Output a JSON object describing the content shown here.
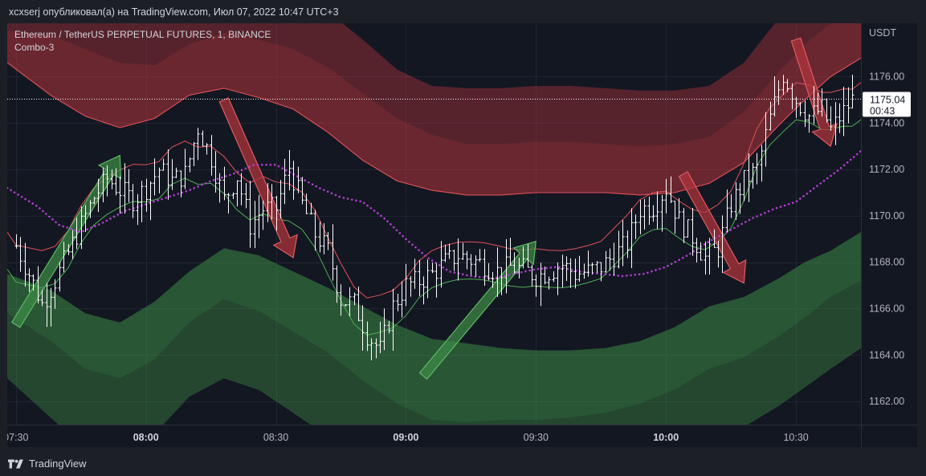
{
  "header": {
    "publish_line": "xcxserj опубликовал(а) на TradingView.com, Июл 07, 2022 10:47 UTC+3"
  },
  "legend": {
    "symbol_line": "Ethereum / TetherUS PERPETUAL FUTURES, 1, BINANCE",
    "indicator_name": "Combo-3"
  },
  "footer": {
    "brand": "TradingView"
  },
  "colors": {
    "background": "#131722",
    "upper_band": "#b2353c",
    "lower_band": "#3d8a45",
    "candle": "#ffffff",
    "dotted_ma": "#b13fd0",
    "current_price_box": "#ffffff"
  },
  "chart_data": {
    "type": "line",
    "title": "Ethereum / TetherUS PERPETUAL FUTURES, 1, BINANCE",
    "y_axis_label": "USDT",
    "ylim": [
      1161.0,
      1178.3
    ],
    "y_ticks": [
      "1162.00",
      "1164.00",
      "1166.00",
      "1168.00",
      "1170.00",
      "1172.00",
      "1174.00",
      "1176.00"
    ],
    "x_ticks": [
      {
        "label": "07:30",
        "bold": false
      },
      {
        "label": "08:00",
        "bold": true
      },
      {
        "label": "08:30",
        "bold": false
      },
      {
        "label": "09:00",
        "bold": true
      },
      {
        "label": "09:30",
        "bold": false
      },
      {
        "label": "10:00",
        "bold": true
      },
      {
        "label": "10:30",
        "bold": false
      }
    ],
    "x_tick_minutes": [
      0,
      30,
      60,
      90,
      120,
      150,
      180
    ],
    "x_range_minutes": [
      -2,
      195
    ],
    "current_price": {
      "value": "1175.04",
      "countdown": "00:43"
    },
    "close_series": {
      "x": [
        -2,
        0,
        3,
        6,
        9,
        12,
        15,
        18,
        21,
        24,
        27,
        30,
        33,
        36,
        39,
        42,
        45,
        48,
        51,
        54,
        57,
        60,
        63,
        66,
        69,
        72,
        75,
        78,
        81,
        84,
        87,
        90,
        93,
        96,
        99,
        102,
        105,
        108,
        111,
        114,
        117,
        120,
        123,
        126,
        129,
        132,
        135,
        138,
        141,
        144,
        147,
        150,
        153,
        156,
        159,
        162,
        165,
        168,
        171,
        174,
        177,
        180,
        183,
        186,
        188,
        191,
        193,
        195
      ],
      "y": [
        1169.0,
        1168.7,
        1167.5,
        1166.2,
        1167.2,
        1168.4,
        1169.6,
        1170.8,
        1171.6,
        1171.1,
        1170.7,
        1171.2,
        1172.0,
        1171.5,
        1171.8,
        1173.8,
        1172.5,
        1170.7,
        1171.7,
        1169.6,
        1170.3,
        1170.3,
        1172.1,
        1170.5,
        1169.2,
        1168.5,
        1166.4,
        1166.2,
        1164.9,
        1164.2,
        1166.1,
        1167.0,
        1167.2,
        1167.5,
        1168.0,
        1168.3,
        1168.1,
        1167.9,
        1167.6,
        1167.8,
        1167.7,
        1167.4,
        1167.6,
        1167.9,
        1167.5,
        1167.6,
        1167.8,
        1168.3,
        1168.8,
        1170.3,
        1170.4,
        1171.2,
        1169.8,
        1169.1,
        1168.2,
        1168.6,
        1170.5,
        1171.5,
        1172.0,
        1174.2,
        1176.1,
        1175.0,
        1174.3,
        1174.6,
        1173.7,
        1174.5,
        1175.0,
        1175.04
      ]
    },
    "dotted_ma": {
      "x": [
        -2,
        5,
        10,
        15,
        20,
        25,
        30,
        35,
        40,
        45,
        50,
        55,
        60,
        65,
        70,
        75,
        80,
        85,
        90,
        95,
        100,
        105,
        110,
        115,
        120,
        125,
        130,
        135,
        140,
        145,
        150,
        155,
        160,
        165,
        170,
        175,
        180,
        185,
        190,
        195
      ],
      "y": [
        1171.2,
        1170.4,
        1169.6,
        1169.3,
        1169.7,
        1170.2,
        1170.5,
        1170.8,
        1171.1,
        1171.5,
        1171.8,
        1172.2,
        1172.2,
        1171.7,
        1171.2,
        1170.8,
        1170.6,
        1169.9,
        1169.0,
        1168.2,
        1167.6,
        1167.4,
        1167.3,
        1167.5,
        1167.7,
        1167.8,
        1167.6,
        1167.5,
        1167.4,
        1167.5,
        1167.8,
        1168.3,
        1168.9,
        1169.4,
        1169.9,
        1170.3,
        1170.6,
        1171.3,
        1172.0,
        1172.8
      ]
    },
    "upper_band": {
      "x": [
        -2,
        8,
        16,
        24,
        32,
        40,
        48,
        56,
        64,
        72,
        80,
        88,
        96,
        104,
        112,
        120,
        128,
        136,
        144,
        152,
        160,
        168,
        176,
        182,
        188,
        195
      ],
      "outer": [
        1179.8,
        1180.2,
        1179.6,
        1178.6,
        1178.8,
        1179.5,
        1179.8,
        1179.6,
        1179.4,
        1178.8,
        1177.6,
        1176.3,
        1175.6,
        1175.5,
        1175.5,
        1175.6,
        1175.6,
        1175.5,
        1175.4,
        1175.4,
        1175.6,
        1176.6,
        1178.5,
        1180.3,
        1181.0,
        1181.2
      ],
      "mid": [
        1178.0,
        1177.8,
        1177.2,
        1176.6,
        1176.5,
        1177.4,
        1177.9,
        1177.6,
        1177.2,
        1176.4,
        1175.3,
        1174.2,
        1173.5,
        1173.1,
        1173.1,
        1173.2,
        1173.2,
        1173.1,
        1173.0,
        1173.1,
        1173.4,
        1174.5,
        1176.2,
        1177.4,
        1178.3,
        1178.8
      ],
      "inner": [
        1176.6,
        1175.2,
        1174.3,
        1173.8,
        1174.2,
        1175.2,
        1175.5,
        1175.1,
        1174.6,
        1173.6,
        1172.4,
        1171.5,
        1171.1,
        1170.9,
        1170.9,
        1171.0,
        1171.0,
        1171.0,
        1170.9,
        1171.0,
        1171.4,
        1172.3,
        1173.9,
        1175.0,
        1176.0,
        1176.8
      ]
    },
    "lower_band": {
      "x": [
        -2,
        8,
        16,
        24,
        32,
        40,
        48,
        56,
        64,
        72,
        80,
        88,
        96,
        104,
        112,
        120,
        128,
        136,
        144,
        152,
        160,
        168,
        176,
        182,
        188,
        195
      ],
      "inner": [
        1167.5,
        1166.8,
        1165.8,
        1165.4,
        1166.3,
        1167.6,
        1168.6,
        1168.3,
        1167.6,
        1166.9,
        1166.1,
        1165.3,
        1164.7,
        1164.5,
        1164.3,
        1164.2,
        1164.2,
        1164.3,
        1164.6,
        1165.2,
        1166.1,
        1166.5,
        1167.3,
        1168.0,
        1168.5,
        1169.3
      ],
      "mid": [
        1165.8,
        1164.6,
        1163.4,
        1163.0,
        1163.8,
        1165.4,
        1166.4,
        1165.9,
        1165.0,
        1164.1,
        1162.9,
        1161.9,
        1161.2,
        1161.1,
        1161.2,
        1161.2,
        1161.3,
        1161.5,
        1161.9,
        1162.5,
        1163.4,
        1163.9,
        1164.8,
        1165.6,
        1166.5,
        1167.2
      ],
      "outer": [
        1163.0,
        1161.3,
        1160.0,
        1159.5,
        1160.6,
        1162.2,
        1163.0,
        1162.5,
        1161.5,
        1160.5,
        1159.5,
        1158.6,
        1158.2,
        1158.0,
        1158.0,
        1158.1,
        1158.2,
        1158.4,
        1158.8,
        1159.4,
        1160.2,
        1160.9,
        1161.8,
        1162.6,
        1163.4,
        1164.3
      ]
    },
    "arrows_up": [
      {
        "tail": [
          0,
          1165.3
        ],
        "head": [
          24,
          1172.6
        ]
      },
      {
        "tail": [
          94,
          1163.1
        ],
        "head": [
          120,
          1168.9
        ]
      }
    ],
    "arrows_down": [
      {
        "tail": [
          48,
          1175.0
        ],
        "head": [
          64,
          1168.2
        ]
      },
      {
        "tail": [
          154,
          1171.8
        ],
        "head": [
          168,
          1167.1
        ]
      },
      {
        "tail": [
          180,
          1177.6
        ],
        "head": [
          188,
          1173.0
        ]
      }
    ]
  }
}
